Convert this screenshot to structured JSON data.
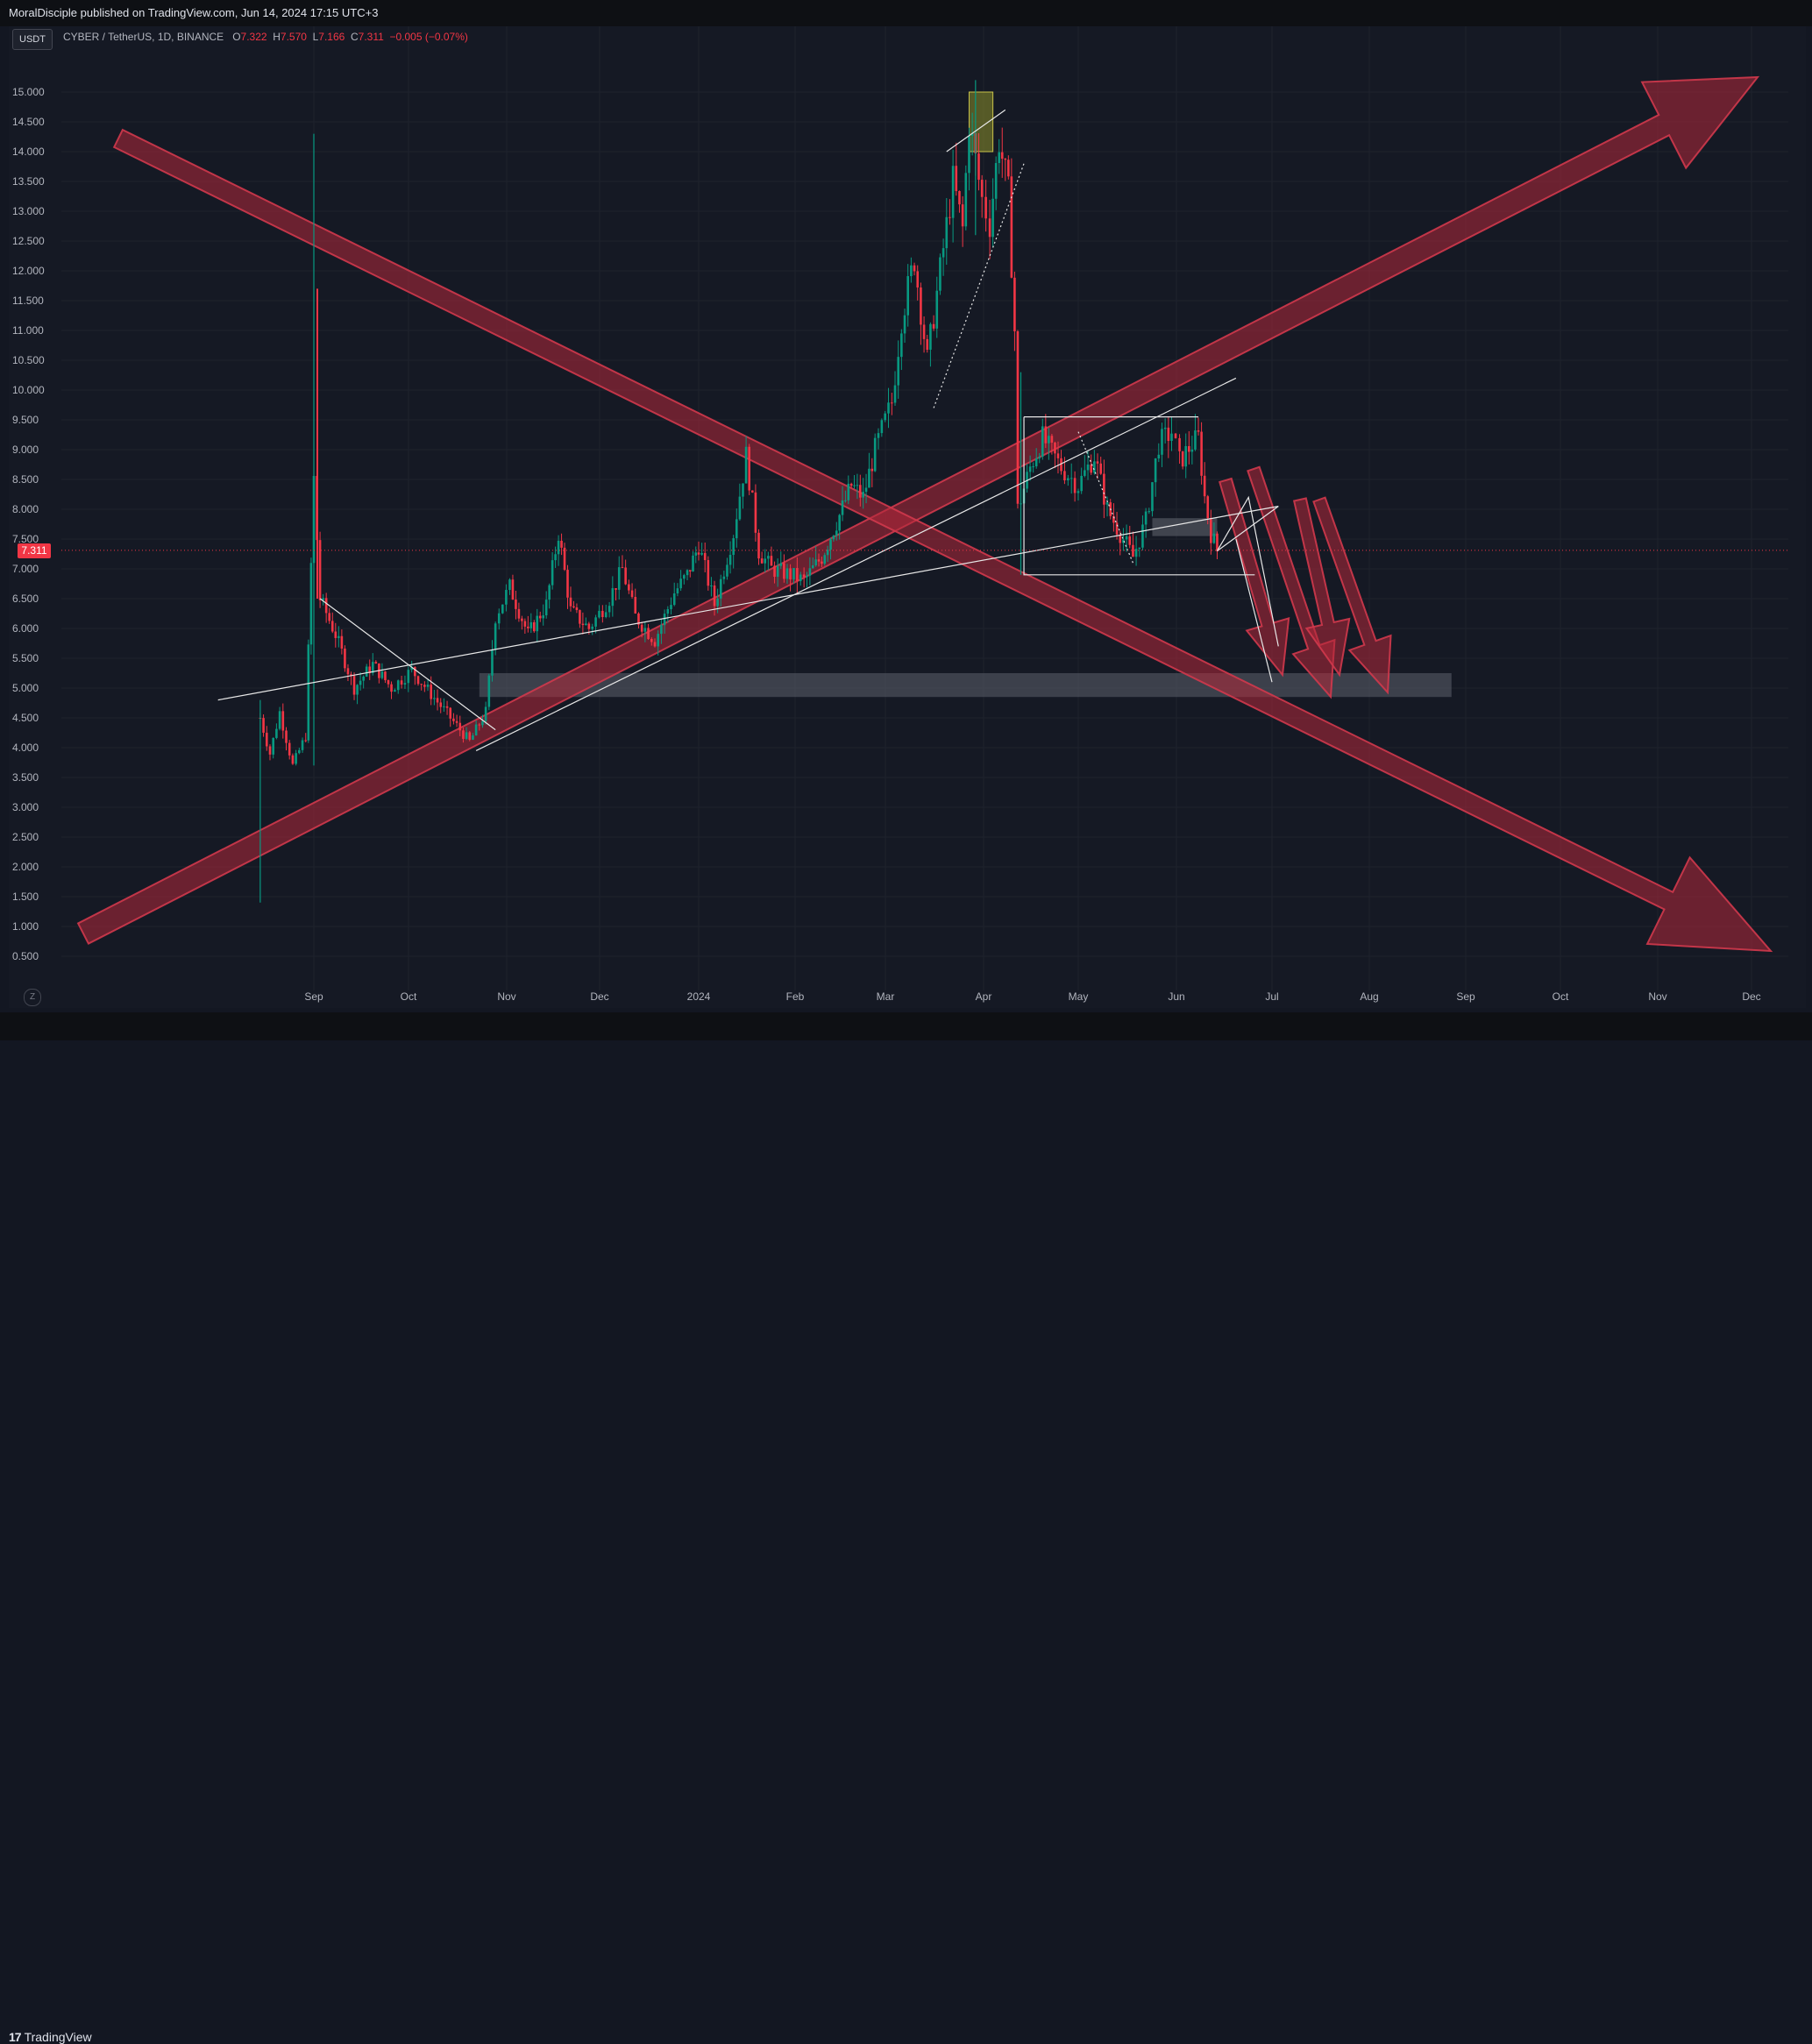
{
  "header": {
    "published_text": "MoralDisciple published on TradingView.com, Jun 14, 2024 17:15 UTC+3"
  },
  "toolbar": {
    "currency_button": "USDT",
    "zoom_button": "Z"
  },
  "footer": {
    "brand_mark": "17",
    "brand_name": "TradingView"
  },
  "legend": {
    "symbol": "CYBER / TetherUS, 1D, BINANCE",
    "open_label": "O",
    "open_value": "7.322",
    "high_label": "H",
    "high_value": "7.570",
    "low_label": "L",
    "low_value": "7.166",
    "close_label": "C",
    "close_value": "7.311",
    "change_value": "−0.005 (−0.07%)"
  },
  "colors": {
    "background": "#151924",
    "up": "#089981",
    "down": "#f23645",
    "arrow_fill": "#b2283a",
    "zone": "#5d606b"
  },
  "chart_data": {
    "type": "candlestick",
    "symbol": "CYBER / TetherUS",
    "interval": "1D",
    "exchange": "BINANCE",
    "last_price": "7.311",
    "y_axis": {
      "ticks": [
        "15.000",
        "14.500",
        "14.000",
        "13.500",
        "13.000",
        "12.500",
        "12.000",
        "11.500",
        "11.000",
        "10.500",
        "10.000",
        "9.500",
        "9.000",
        "8.500",
        "8.000",
        "7.500",
        "7.000",
        "6.500",
        "6.000",
        "5.500",
        "5.000",
        "4.500",
        "4.000",
        "3.500",
        "3.000",
        "2.500",
        "2.000",
        "1.500",
        "1.000",
        "0.500"
      ],
      "range": [
        0.2,
        15.5
      ]
    },
    "x_axis": {
      "ticks": [
        "Sep",
        "Oct",
        "Nov",
        "Dec",
        "2024",
        "Feb",
        "Mar",
        "Apr",
        "May",
        "Jun",
        "Jul",
        "Aug",
        "Sep",
        "Oct",
        "Nov",
        "Dec"
      ]
    },
    "price_path": [
      [
        "Aug 15",
        4.5
      ],
      [
        "Aug 18",
        3.9
      ],
      [
        "Aug 21",
        4.6
      ],
      [
        "Aug 25",
        3.7
      ],
      [
        "Aug 29",
        4.2
      ],
      [
        "Sep 1",
        8.5
      ],
      [
        "Sep 3",
        6.5
      ],
      [
        "Sep 8",
        5.9
      ],
      [
        "Sep 14",
        5.0
      ],
      [
        "Sep 20",
        5.4
      ],
      [
        "Sep 26",
        5.0
      ],
      [
        "Oct 2",
        5.3
      ],
      [
        "Oct 8",
        4.9
      ],
      [
        "Oct 14",
        4.5
      ],
      [
        "Oct 20",
        4.1
      ],
      [
        "Oct 25",
        4.6
      ],
      [
        "Oct 28",
        6.2
      ],
      [
        "Nov 2",
        6.7
      ],
      [
        "Nov 8",
        5.9
      ],
      [
        "Nov 14",
        6.4
      ],
      [
        "Nov 18",
        7.6
      ],
      [
        "Nov 22",
        6.3
      ],
      [
        "Nov 28",
        6.0
      ],
      [
        "Dec 4",
        6.5
      ],
      [
        "Dec 8",
        7.0
      ],
      [
        "Dec 12",
        6.2
      ],
      [
        "Dec 18",
        5.8
      ],
      [
        "Dec 24",
        6.6
      ],
      [
        "Dec 28",
        6.9
      ],
      [
        "Jan 1",
        7.4
      ],
      [
        "Jan 6",
        6.4
      ],
      [
        "Jan 12",
        7.6
      ],
      [
        "Jan 16",
        8.9
      ],
      [
        "Jan 20",
        7.3
      ],
      [
        "Jan 24",
        7.0
      ],
      [
        "Jan 30",
        6.9
      ],
      [
        "Feb 4",
        6.8
      ],
      [
        "Feb 10",
        7.2
      ],
      [
        "Feb 16",
        7.9
      ],
      [
        "Feb 20",
        8.4
      ],
      [
        "Feb 24",
        8.2
      ],
      [
        "Feb 28",
        9.0
      ],
      [
        "Mar 3",
        9.8
      ],
      [
        "Mar 6",
        11.2
      ],
      [
        "Mar 10",
        12.2
      ],
      [
        "Mar 14",
        10.5
      ],
      [
        "Mar 18",
        12.0
      ],
      [
        "Mar 22",
        13.5
      ],
      [
        "Mar 25",
        12.7
      ],
      [
        "Mar 27",
        14.5
      ],
      [
        "Mar 31",
        13.2
      ],
      [
        "Apr 3",
        12.8
      ],
      [
        "Apr 6",
        14.2
      ],
      [
        "Apr 9",
        13.3
      ],
      [
        "Apr 11",
        11.0
      ],
      [
        "Apr 12",
        8.0
      ],
      [
        "Apr 16",
        8.7
      ],
      [
        "Apr 20",
        9.2
      ],
      [
        "Apr 26",
        8.7
      ],
      [
        "May 1",
        8.4
      ],
      [
        "May 6",
        8.9
      ],
      [
        "May 10",
        8.0
      ],
      [
        "May 14",
        7.6
      ],
      [
        "May 18",
        7.2
      ],
      [
        "May 22",
        7.8
      ],
      [
        "May 26",
        9.1
      ],
      [
        "May 30",
        9.3
      ],
      [
        "Jun 2",
        8.8
      ],
      [
        "Jun 6",
        9.1
      ],
      [
        "Jun 8",
        9.2
      ],
      [
        "Jun 10",
        8.2
      ],
      [
        "Jun 12",
        7.6
      ],
      [
        "Jun 14",
        7.311
      ]
    ],
    "wick_extremes": [
      [
        "Aug 15",
        1.4,
        4.8
      ],
      [
        "Sep 1",
        3.7,
        14.3
      ],
      [
        "Mar 29",
        12.6,
        15.2
      ],
      [
        "Apr 13",
        6.9,
        10.3
      ]
    ],
    "annotations": {
      "zones": [
        {
          "from": "Oct 23",
          "to": "Aug 27",
          "low": 4.85,
          "high": 5.25
        },
        {
          "from": "May 24",
          "to": "Jun 14",
          "low": 7.55,
          "high": 7.85
        }
      ],
      "range_box": {
        "from": "Apr 14",
        "to": "Jun 26",
        "low": 6.9,
        "high": 9.55
      },
      "marked_peak_box": {
        "from": "Mar 27",
        "to": "Apr 4",
        "low": 14.0,
        "high": 15.0
      },
      "big_arrows": [
        "ascending toward Dec 2024 top-right",
        "descending toward Dec 2024 bottom-right"
      ],
      "projection_arrows": 4
    }
  }
}
